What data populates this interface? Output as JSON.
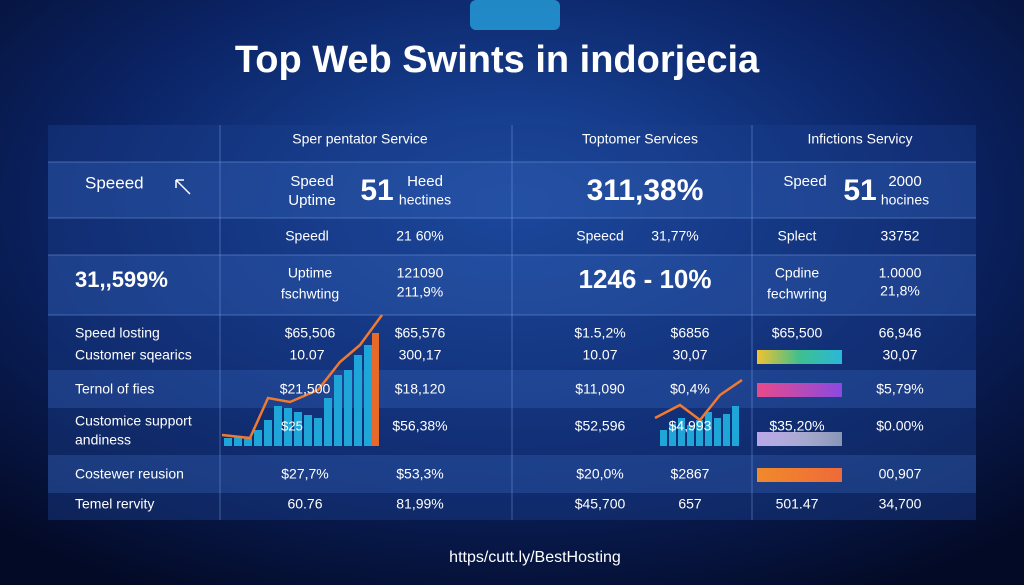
{
  "title": "Top Web Swints in indorjecia",
  "header": [
    "Sper pentator Service",
    "Toptomer Services",
    "Infictions Servicy"
  ],
  "rows": [
    [
      "Speeed",
      "Speed",
      "Uptime",
      "51",
      "Heed",
      "hectines",
      "311,38%",
      "Speed",
      "51",
      "2000",
      "hocines"
    ],
    [
      "Speedl",
      "21 60%",
      "Speecd",
      "31,77%",
      "Splect",
      "33752"
    ],
    [
      "31,,599%",
      "Uptime",
      "fschwting",
      "121090",
      "211,9%",
      "1246 - 10%",
      "Cpdine",
      "fechwring",
      "1.0000",
      "21,8%"
    ],
    [
      "Speed losting",
      "$65,506",
      "$65,576",
      "$1.5,2%",
      "$6856",
      "$65,500",
      "66,946"
    ],
    [
      "Customer sqearics",
      "10.07",
      "300,17",
      "10.07",
      "30,07",
      "30,07"
    ],
    [
      "Ternol of fies",
      "$21,500",
      "$18,120",
      "$11,090",
      "$0,4%",
      "$5,79%"
    ],
    [
      "Customice support",
      "andiness",
      "$25",
      "$56,38%",
      "$52,596",
      "$4,993",
      "$35,20%",
      "$0.00%"
    ],
    [
      "Costewer reusion",
      "$27,7%",
      "$53,3%",
      "$20,0%",
      "$2867",
      "00,907"
    ],
    [
      "Temel rervity",
      "60.76",
      "81,99%",
      "$45,700",
      "657",
      "501.47",
      "34,700"
    ]
  ],
  "footer": "https/cutt.ly/BestHosting"
}
